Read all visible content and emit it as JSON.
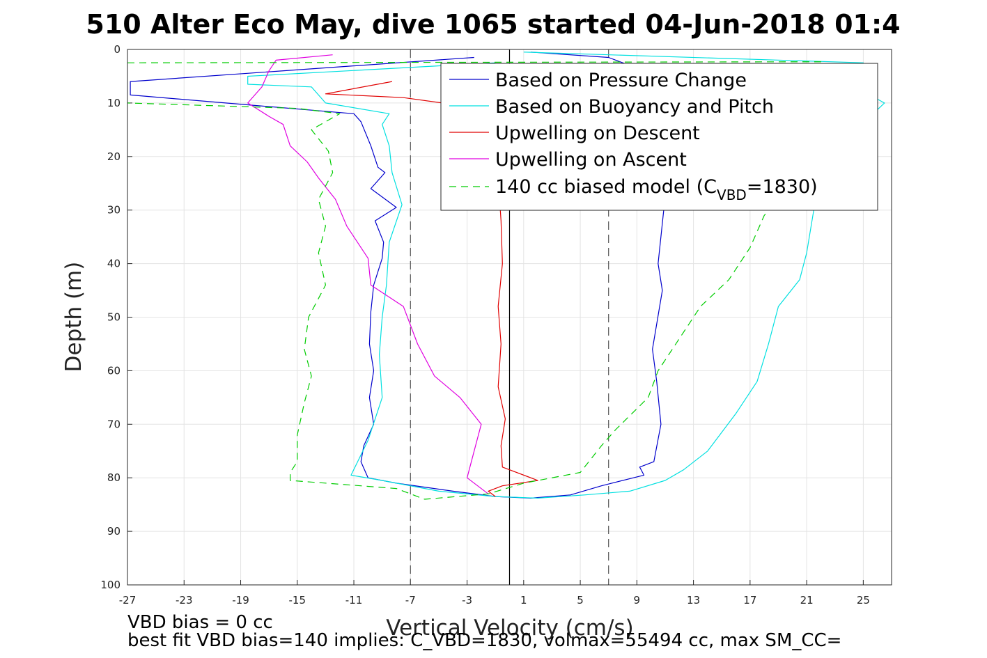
{
  "chart_data": {
    "type": "line",
    "title": "510 Alter Eco May, dive 1065 started 04-Jun-2018 01:4",
    "xlabel": "Vertical Velocity (cm/s)",
    "ylabel": "Depth (m)",
    "xlim": [
      -27,
      27
    ],
    "ylim": [
      0,
      100
    ],
    "y_reversed": true,
    "grid": true,
    "legend_position": "top-right",
    "xticks": [
      -27,
      -23,
      -19,
      -15,
      -11,
      -7,
      -3,
      1,
      5,
      9,
      13,
      17,
      21,
      25
    ],
    "yticks": [
      0,
      10,
      20,
      30,
      40,
      50,
      60,
      70,
      80,
      90,
      100
    ],
    "reference_lines": [
      {
        "x": -7,
        "style": "dashed",
        "color": "#555555"
      },
      {
        "x": 7,
        "style": "dashed",
        "color": "#555555"
      },
      {
        "x": 0,
        "style": "solid",
        "color": "#000000"
      }
    ],
    "series": [
      {
        "name": "Based on Pressure Change",
        "color": "#0000cc",
        "dash": "none",
        "points": [
          [
            -2.5,
            1.5
          ],
          [
            -26.8,
            6
          ],
          [
            -26.8,
            8.5
          ],
          [
            -11,
            12
          ],
          [
            -10.5,
            13.5
          ],
          [
            -9.8,
            18
          ],
          [
            -9.3,
            22
          ],
          [
            -8.8,
            23
          ],
          [
            -9.8,
            26
          ],
          [
            -8,
            29.5
          ],
          [
            -9.5,
            32
          ],
          [
            -8.9,
            36
          ],
          [
            -9,
            39
          ],
          [
            -9.6,
            44
          ],
          [
            -9.8,
            49
          ],
          [
            -9.9,
            55
          ],
          [
            -9.6,
            60
          ],
          [
            -9.9,
            65
          ],
          [
            -9.6,
            70
          ],
          [
            -10.3,
            74
          ],
          [
            -10.5,
            77
          ],
          [
            -10,
            80
          ],
          [
            -8,
            81
          ],
          [
            -4,
            82.5
          ],
          [
            -1,
            83.5
          ],
          [
            1.5,
            83.8
          ],
          [
            4.3,
            83.2
          ],
          [
            6.5,
            81.5
          ],
          [
            9.5,
            79.5
          ],
          [
            9.2,
            78
          ],
          [
            10.2,
            77
          ],
          [
            10.7,
            70
          ],
          [
            10.4,
            62
          ],
          [
            10.1,
            56
          ],
          [
            10.8,
            45
          ],
          [
            10.5,
            40
          ],
          [
            10.9,
            30
          ],
          [
            11,
            10
          ],
          [
            10.5,
            5
          ],
          [
            7,
            1.5
          ],
          [
            1.5,
            0.5
          ]
        ]
      },
      {
        "name": "Based on Buoyancy and Pitch",
        "color": "#00e0e0",
        "dash": "none",
        "points": [
          [
            -1,
            2.5
          ],
          [
            -18.5,
            5
          ],
          [
            -18.5,
            6.5
          ],
          [
            -14,
            7
          ],
          [
            -13,
            10
          ],
          [
            -8.5,
            12
          ],
          [
            -9,
            14
          ],
          [
            -8.5,
            18
          ],
          [
            -8.3,
            23
          ],
          [
            -7.6,
            29
          ],
          [
            -8.5,
            36
          ],
          [
            -8.7,
            44
          ],
          [
            -9,
            50
          ],
          [
            -9.2,
            57
          ],
          [
            -9,
            65
          ],
          [
            -10,
            73
          ],
          [
            -11.2,
            79.5
          ],
          [
            -9,
            80.5
          ],
          [
            -5,
            82.5
          ],
          [
            -1,
            83.5
          ],
          [
            2,
            83.8
          ],
          [
            5.3,
            83.2
          ],
          [
            8.5,
            82.5
          ],
          [
            11,
            80.5
          ],
          [
            12.3,
            78.5
          ],
          [
            14,
            75
          ],
          [
            16,
            68
          ],
          [
            17.5,
            62
          ],
          [
            18.3,
            55
          ],
          [
            19,
            48
          ],
          [
            20.5,
            43
          ],
          [
            21,
            38
          ],
          [
            21.5,
            30
          ],
          [
            22.5,
            20
          ],
          [
            26.5,
            10
          ],
          [
            23,
            5
          ],
          [
            25,
            2.5
          ],
          [
            1,
            0.5
          ]
        ]
      },
      {
        "name": "Upwelling on Descent",
        "color": "#e00000",
        "dash": "none",
        "points": [
          [
            -8.3,
            6
          ],
          [
            -13,
            8.3
          ],
          [
            -7.5,
            9
          ],
          [
            -2,
            11
          ],
          [
            -0.8,
            24
          ],
          [
            -0.6,
            32
          ],
          [
            -0.5,
            40
          ],
          [
            -0.8,
            48
          ],
          [
            -0.6,
            55
          ],
          [
            -0.8,
            63
          ],
          [
            -0.3,
            69
          ],
          [
            -0.6,
            74
          ],
          [
            -0.5,
            78
          ],
          [
            2,
            80.5
          ],
          [
            -0.5,
            81.5
          ],
          [
            -1.5,
            82.5
          ],
          [
            -1,
            83.5
          ]
        ]
      },
      {
        "name": "Upwelling on Ascent",
        "color": "#e000e0",
        "dash": "none",
        "points": [
          [
            -1.5,
            83
          ],
          [
            -3,
            80
          ],
          [
            -2.5,
            75
          ],
          [
            -2,
            70
          ],
          [
            -3.5,
            65
          ],
          [
            -5.3,
            61
          ],
          [
            -6.5,
            55
          ],
          [
            -7.5,
            48
          ],
          [
            -9.8,
            44
          ],
          [
            -10,
            39
          ],
          [
            -11.5,
            33
          ],
          [
            -12.3,
            28
          ],
          [
            -13.5,
            24
          ],
          [
            -14.3,
            21
          ],
          [
            -15.5,
            18
          ],
          [
            -16,
            14
          ],
          [
            -17,
            12.5
          ],
          [
            -18.5,
            10
          ],
          [
            -17.5,
            7
          ],
          [
            -17,
            4
          ],
          [
            -16.5,
            2
          ],
          [
            -12.5,
            1
          ]
        ]
      },
      {
        "name": "140 cc biased model (C_VBD=1830)",
        "color": "#00cc00",
        "dash": "10,7",
        "points": [
          [
            -27,
            2.5
          ],
          [
            22,
            2.3
          ],
          [
            26,
            10
          ],
          [
            22,
            17
          ],
          [
            20,
            25
          ],
          [
            18,
            31
          ],
          [
            17,
            37
          ],
          [
            15.5,
            43
          ],
          [
            13.5,
            48
          ],
          [
            12,
            54
          ],
          [
            10.5,
            60
          ],
          [
            9.8,
            65
          ],
          [
            7.5,
            71
          ],
          [
            6.5,
            74
          ],
          [
            5,
            79
          ],
          [
            1,
            81
          ],
          [
            -1.5,
            83
          ],
          [
            -6,
            84
          ],
          [
            -8,
            82
          ],
          [
            -15.5,
            80.5
          ],
          [
            -15.5,
            79
          ],
          [
            -15,
            77
          ],
          [
            -15,
            72
          ],
          [
            -14.5,
            66
          ],
          [
            -14,
            61
          ],
          [
            -14.5,
            56
          ],
          [
            -14.2,
            50
          ],
          [
            -13,
            44
          ],
          [
            -13.5,
            38
          ],
          [
            -13,
            33
          ],
          [
            -13.5,
            28
          ],
          [
            -12.5,
            23
          ],
          [
            -12.8,
            19
          ],
          [
            -14,
            15
          ],
          [
            -12,
            12
          ],
          [
            -15,
            11
          ],
          [
            -27,
            10
          ]
        ]
      }
    ],
    "legend": {
      "entries": [
        {
          "label": "Based on Pressure Change",
          "color": "#0000cc",
          "dash": "none"
        },
        {
          "label": "Based on Buoyancy and Pitch",
          "color": "#00e0e0",
          "dash": "none"
        },
        {
          "label": "Upwelling on Descent",
          "color": "#e00000",
          "dash": "none"
        },
        {
          "label": "Upwelling on Ascent",
          "color": "#e000e0",
          "dash": "none"
        },
        {
          "label_main": "140 cc biased model (C",
          "label_sub": "VBD",
          "label_end": "=1830)",
          "color": "#00cc00",
          "dash": "10,7"
        }
      ]
    }
  },
  "footer": {
    "line1": "VBD bias = 0 cc",
    "line2": "best fit VBD bias=140 implies: C_VBD=1830, volmax=55494 cc, max SM_CC="
  }
}
